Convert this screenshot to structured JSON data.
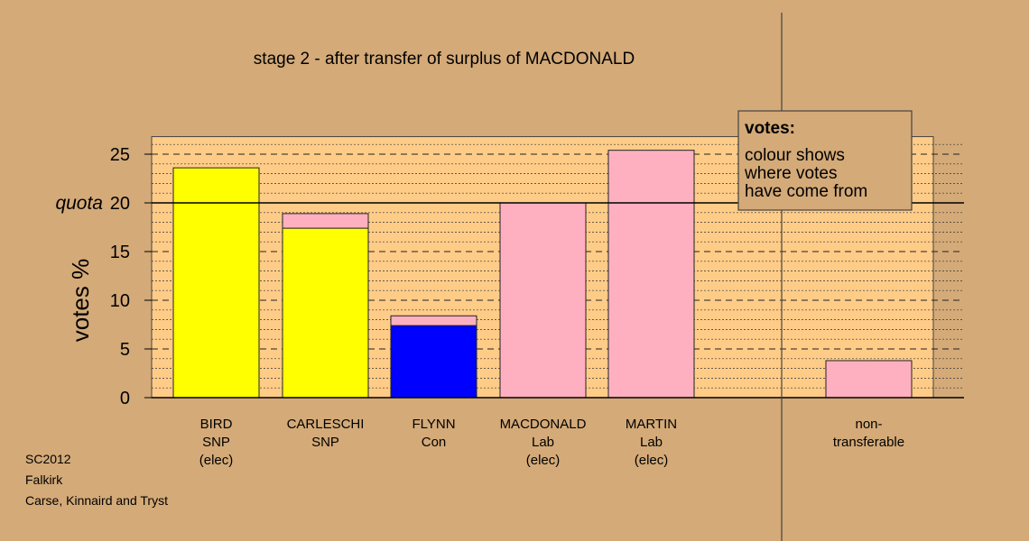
{
  "chart_data": {
    "type": "bar",
    "title": "stage 2 - after transfer of surplus of MACDONALD",
    "ylabel": "votes %",
    "quota_label": "quota",
    "quota_value": 20,
    "ylim": [
      0,
      26.8
    ],
    "yticks": [
      0,
      5,
      10,
      15,
      20,
      25
    ],
    "bars": [
      {
        "lines": [
          "BIRD",
          "SNP",
          "(elec)"
        ],
        "segments": [
          {
            "value": 23.6,
            "color": "#ffff00"
          }
        ]
      },
      {
        "lines": [
          "CARLESCHI",
          "SNP"
        ],
        "segments": [
          {
            "value": 17.4,
            "color": "#ffff00"
          },
          {
            "value": 1.5,
            "color": "#ffb0c0"
          }
        ]
      },
      {
        "lines": [
          "FLYNN",
          "Con"
        ],
        "segments": [
          {
            "value": 7.4,
            "color": "#0000ff"
          },
          {
            "value": 1.0,
            "color": "#ffb0c0"
          }
        ]
      },
      {
        "lines": [
          "MACDONALD",
          "Lab",
          "(elec)"
        ],
        "segments": [
          {
            "value": 20.0,
            "color": "#ffb0c0"
          }
        ]
      },
      {
        "lines": [
          "MARTIN",
          "Lab",
          "(elec)"
        ],
        "segments": [
          {
            "value": 25.4,
            "color": "#ffb0c0"
          }
        ]
      },
      {
        "lines": [
          "non-",
          "transferable"
        ],
        "segments": [
          {
            "value": 3.8,
            "color": "#ffb0c0"
          }
        ]
      }
    ],
    "legend": {
      "title": "votes:",
      "lines": [
        "colour shows",
        "where votes",
        "have come from"
      ],
      "placement": "top-right"
    }
  },
  "footer": {
    "lines": [
      "SC2012",
      "Falkirk",
      "Carse, Kinnaird and Tryst"
    ]
  }
}
